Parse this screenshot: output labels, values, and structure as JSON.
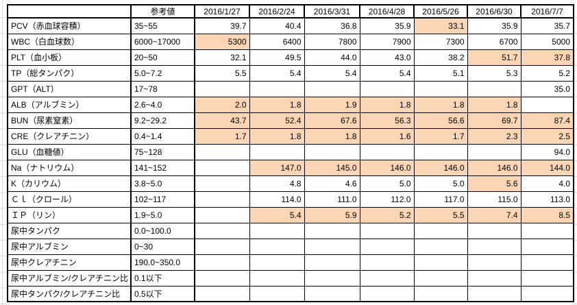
{
  "app": {
    "background_color": "#ffffff",
    "margin_gridline_color": "#d8d8d8"
  },
  "table": {
    "border_color": "#000000",
    "highlight_color": "#FCD5B4",
    "header": {
      "corner_label": "",
      "reference_label": "参考値",
      "dates": [
        "2016/1/27",
        "2016/2/24",
        "2016/3/31",
        "2016/4/28",
        "2016/5/26",
        "2016/6/30",
        "2016/7/7"
      ]
    },
    "rows": [
      {
        "label": "PCV（赤血球容積）",
        "reference": "35~55",
        "values": [
          "39.7",
          "40.4",
          "36.8",
          "35.9",
          "33.1",
          "35.9",
          "35.7"
        ],
        "highlights": [
          false,
          false,
          false,
          false,
          true,
          false,
          false
        ]
      },
      {
        "label": "WBC（白血球数）",
        "reference": "6000~17000",
        "values": [
          "5300",
          "6400",
          "7800",
          "7900",
          "7300",
          "6700",
          "5000"
        ],
        "highlights": [
          true,
          false,
          false,
          false,
          false,
          false,
          false
        ]
      },
      {
        "label": "PLT（血小板）",
        "reference": "20~50",
        "values": [
          "32.1",
          "49.5",
          "44.0",
          "43.0",
          "38.2",
          "51.7",
          "37.8"
        ],
        "highlights": [
          false,
          false,
          false,
          false,
          false,
          true,
          true
        ]
      },
      {
        "label": "TP（総タンパク）",
        "reference": "5.0~7.2",
        "values": [
          "5.5",
          "5.4",
          "5.4",
          "5.4",
          "5.1",
          "5.3",
          "5.2"
        ],
        "highlights": [
          false,
          false,
          false,
          false,
          false,
          false,
          false
        ]
      },
      {
        "label": "GPT（ALT）",
        "reference": "17~78",
        "values": [
          "",
          "",
          "",
          "",
          "",
          "",
          "35.0"
        ],
        "highlights": [
          false,
          false,
          false,
          false,
          false,
          false,
          false
        ]
      },
      {
        "label": "ALB（アルブミン）",
        "reference": "2.6~4.0",
        "values": [
          "2.0",
          "1.8",
          "1.9",
          "1.8",
          "1.8",
          "1.8",
          ""
        ],
        "highlights": [
          true,
          true,
          true,
          true,
          true,
          true,
          false
        ]
      },
      {
        "label": "BUN（尿素窒素）",
        "reference": "9.2~29.2",
        "values": [
          "43.7",
          "52.4",
          "67.6",
          "56.3",
          "56.6",
          "69.7",
          "87.4"
        ],
        "highlights": [
          true,
          true,
          true,
          true,
          true,
          true,
          true
        ]
      },
      {
        "label": "CRE（クレアチニン）",
        "reference": "0.4~1.4",
        "values": [
          "1.7",
          "1.8",
          "1.8",
          "1.6",
          "1.7",
          "2.3",
          "2.5"
        ],
        "highlights": [
          true,
          true,
          true,
          true,
          true,
          true,
          true
        ]
      },
      {
        "label": "GLU（血糖値）",
        "reference": "75~128",
        "values": [
          "",
          "",
          "",
          "",
          "",
          "",
          "94.0"
        ],
        "highlights": [
          false,
          false,
          false,
          false,
          false,
          false,
          false
        ]
      },
      {
        "label": "Na（ナトリウム）",
        "reference": "141~152",
        "values": [
          "",
          "147.0",
          "145.0",
          "146.0",
          "146.0",
          "146.0",
          "144.0"
        ],
        "highlights": [
          false,
          true,
          true,
          true,
          true,
          true,
          true
        ]
      },
      {
        "label": "K（カリウム）",
        "reference": "3.8~5.0",
        "values": [
          "",
          "4.8",
          "4.6",
          "5.0",
          "5.0",
          "5.6",
          "4.0"
        ],
        "highlights": [
          false,
          false,
          false,
          false,
          false,
          true,
          false
        ]
      },
      {
        "label": "Ｃｌ（クロール）",
        "reference": "102~117",
        "values": [
          "",
          "114.0",
          "111.0",
          "112.0",
          "117.0",
          "115.0",
          "113.0"
        ],
        "highlights": [
          false,
          false,
          false,
          false,
          false,
          false,
          false
        ]
      },
      {
        "label": "ＩＰ（リン）",
        "reference": "1.9~5.0",
        "values": [
          "",
          "5.4",
          "5.9",
          "5.2",
          "5.5",
          "7.4",
          "8.5"
        ],
        "highlights": [
          false,
          true,
          true,
          true,
          true,
          true,
          true
        ]
      },
      {
        "label": "尿中タンパク",
        "reference": "0.0~100.0",
        "values": [
          "",
          "",
          "",
          "",
          "",
          "",
          ""
        ],
        "highlights": [
          false,
          false,
          false,
          false,
          false,
          false,
          false
        ]
      },
      {
        "label": "尿中アルブミン",
        "reference": "0~30",
        "values": [
          "",
          "",
          "",
          "",
          "",
          "",
          ""
        ],
        "highlights": [
          false,
          false,
          false,
          false,
          false,
          false,
          false
        ]
      },
      {
        "label": "尿中クレアチニン",
        "reference": "190.0~350.0",
        "values": [
          "",
          "",
          "",
          "",
          "",
          "",
          ""
        ],
        "highlights": [
          false,
          false,
          false,
          false,
          false,
          false,
          false
        ]
      },
      {
        "label": "尿中アルブミン/クレアチニン比",
        "reference": "0.1以下",
        "values": [
          "",
          "",
          "",
          "",
          "",
          "",
          ""
        ],
        "highlights": [
          false,
          false,
          false,
          false,
          false,
          false,
          false
        ]
      },
      {
        "label": "尿中タンパク/クレアチニン比",
        "reference": "0.5以下",
        "values": [
          "",
          "",
          "",
          "",
          "",
          "",
          ""
        ],
        "highlights": [
          false,
          false,
          false,
          false,
          false,
          false,
          false
        ]
      }
    ]
  }
}
